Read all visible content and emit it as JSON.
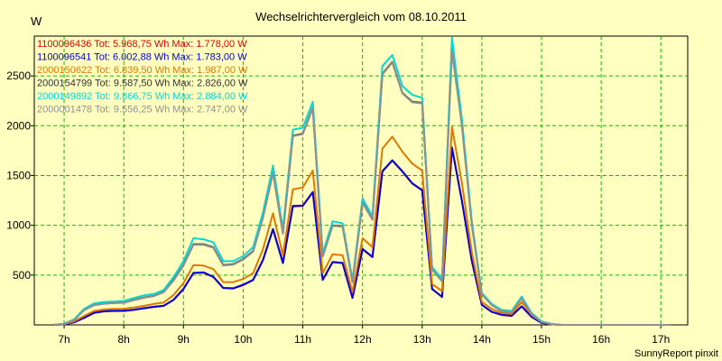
{
  "chart_data": {
    "type": "line",
    "title": "Wechselrichtervergleich vom 08.10.2011",
    "ylabel": "W",
    "xlabel": "",
    "footer": "SunnyReport pinxit",
    "ylim": [
      0,
      2900
    ],
    "xlim": [
      6.5,
      17.45
    ],
    "grid": true,
    "y_ticks": [
      500,
      1000,
      1500,
      2000,
      2500
    ],
    "x_ticks": [
      {
        "v": 7,
        "label": "7h"
      },
      {
        "v": 8,
        "label": "8h"
      },
      {
        "v": 9,
        "label": "9h"
      },
      {
        "v": 10,
        "label": "10h"
      },
      {
        "v": 11,
        "label": "11h"
      },
      {
        "v": 12,
        "label": "12h"
      },
      {
        "v": 13,
        "label": "13h"
      },
      {
        "v": 14,
        "label": "14h"
      },
      {
        "v": 15,
        "label": "15h"
      },
      {
        "v": 16,
        "label": "16h"
      },
      {
        "v": 17,
        "label": "17h"
      }
    ],
    "x": [
      6.833,
      7.0,
      7.167,
      7.333,
      7.5,
      7.667,
      7.833,
      8.0,
      8.167,
      8.333,
      8.5,
      8.667,
      8.833,
      9.0,
      9.167,
      9.333,
      9.5,
      9.667,
      9.833,
      10.0,
      10.167,
      10.333,
      10.5,
      10.667,
      10.833,
      11.0,
      11.167,
      11.333,
      11.5,
      11.667,
      11.833,
      12.0,
      12.167,
      12.333,
      12.5,
      12.667,
      12.833,
      13.0,
      13.167,
      13.333,
      13.5,
      13.667,
      13.833,
      14.0,
      14.167,
      14.333,
      14.5,
      14.667,
      14.833,
      15.0,
      15.167,
      15.333,
      15.5,
      15.667,
      15.833,
      16.0,
      16.167,
      16.333,
      16.5,
      16.667,
      16.833,
      17.0,
      17.167
    ],
    "series": [
      {
        "name": "1100096436",
        "legend": "1100096436 Tot: 5.968,75 Wh Max: 1.778,00 W",
        "color": "#e00000",
        "values": [
          0,
          5,
          25,
          70,
          120,
          135,
          140,
          140,
          150,
          165,
          180,
          190,
          250,
          360,
          520,
          525,
          480,
          370,
          365,
          400,
          450,
          650,
          960,
          620,
          1190,
          1195,
          1330,
          450,
          630,
          620,
          270,
          760,
          680,
          1540,
          1650,
          1540,
          1420,
          1350,
          360,
          280,
          1778,
          1240,
          640,
          200,
          130,
          100,
          90,
          185,
          80,
          20,
          5,
          0,
          0,
          0,
          0,
          0,
          0,
          0,
          0,
          0,
          0,
          0,
          0
        ]
      },
      {
        "name": "1100096541",
        "legend": "1100096541 Tot: 6.002,88 Wh Max: 1.783,00 W",
        "color": "#0000e0",
        "values": [
          0,
          5,
          25,
          72,
          122,
          138,
          142,
          143,
          152,
          168,
          182,
          192,
          252,
          362,
          522,
          528,
          483,
          372,
          368,
          403,
          453,
          653,
          962,
          623,
          1195,
          1198,
          1335,
          453,
          633,
          623,
          272,
          763,
          683,
          1543,
          1653,
          1543,
          1423,
          1353,
          362,
          282,
          1783,
          1243,
          643,
          202,
          132,
          102,
          92,
          188,
          82,
          22,
          6,
          0,
          0,
          0,
          0,
          0,
          0,
          0,
          0,
          0,
          0,
          0,
          0
        ]
      },
      {
        "name": "2000150622",
        "legend": "2000150622 Tot: 6.839,50 Wh Max: 1.987,00 W",
        "color": "#e07800",
        "values": [
          0,
          8,
          35,
          90,
          140,
          155,
          160,
          162,
          175,
          190,
          210,
          225,
          300,
          420,
          600,
          595,
          560,
          430,
          430,
          460,
          520,
          760,
          1120,
          700,
          1360,
          1380,
          1550,
          520,
          710,
          700,
          330,
          870,
          780,
          1770,
          1890,
          1740,
          1620,
          1550,
          410,
          340,
          1987,
          1420,
          730,
          230,
          160,
          120,
          110,
          230,
          100,
          30,
          8,
          0,
          0,
          0,
          0,
          0,
          0,
          0,
          0,
          0,
          0,
          0,
          0
        ]
      },
      {
        "name": "2000154799",
        "legend": "2000154799 Tot: 9.587,50 Wh Max: 2.826,00 W",
        "color": "#303030",
        "values": [
          0,
          10,
          50,
          150,
          200,
          215,
          220,
          225,
          250,
          275,
          290,
          330,
          450,
          600,
          810,
          810,
          780,
          600,
          610,
          660,
          740,
          1080,
          1530,
          920,
          1900,
          1920,
          2180,
          690,
          1000,
          990,
          430,
          1230,
          1060,
          2520,
          2640,
          2330,
          2240,
          2230,
          560,
          440,
          2826,
          2000,
          1010,
          310,
          200,
          140,
          130,
          270,
          110,
          30,
          8,
          0,
          0,
          0,
          0,
          0,
          0,
          0,
          0,
          0,
          0,
          0,
          0
        ]
      },
      {
        "name": "2000149892",
        "legend": "2000149892 Tot: 9.866,75 Wh Max: 2.884,00 W",
        "color": "#00d8d8",
        "values": [
          0,
          12,
          55,
          160,
          215,
          230,
          235,
          240,
          270,
          295,
          310,
          350,
          480,
          640,
          870,
          860,
          830,
          640,
          640,
          690,
          780,
          1130,
          1600,
          960,
          1960,
          1980,
          2240,
          720,
          1040,
          1020,
          450,
          1270,
          1090,
          2600,
          2710,
          2400,
          2310,
          2280,
          580,
          460,
          2884,
          2060,
          1040,
          320,
          210,
          150,
          140,
          285,
          120,
          35,
          10,
          0,
          0,
          0,
          0,
          0,
          0,
          0,
          0,
          0,
          0,
          0,
          0
        ]
      },
      {
        "name": "2000001478",
        "legend": "2000001478 Tot: 9.556,25 Wh Max: 2.747,00 W",
        "color": "#909090",
        "values": [
          0,
          10,
          48,
          148,
          198,
          212,
          218,
          222,
          248,
          272,
          288,
          328,
          445,
          595,
          805,
          805,
          775,
          595,
          605,
          655,
          735,
          1075,
          1525,
          915,
          1895,
          1915,
          2175,
          685,
          995,
          985,
          428,
          1225,
          1055,
          2515,
          2635,
          2325,
          2235,
          2225,
          555,
          438,
          2747,
          1995,
          1005,
          308,
          198,
          138,
          128,
          268,
          108,
          28,
          7,
          0,
          0,
          0,
          0,
          0,
          0,
          0,
          0,
          0,
          0,
          0,
          0
        ]
      }
    ]
  }
}
